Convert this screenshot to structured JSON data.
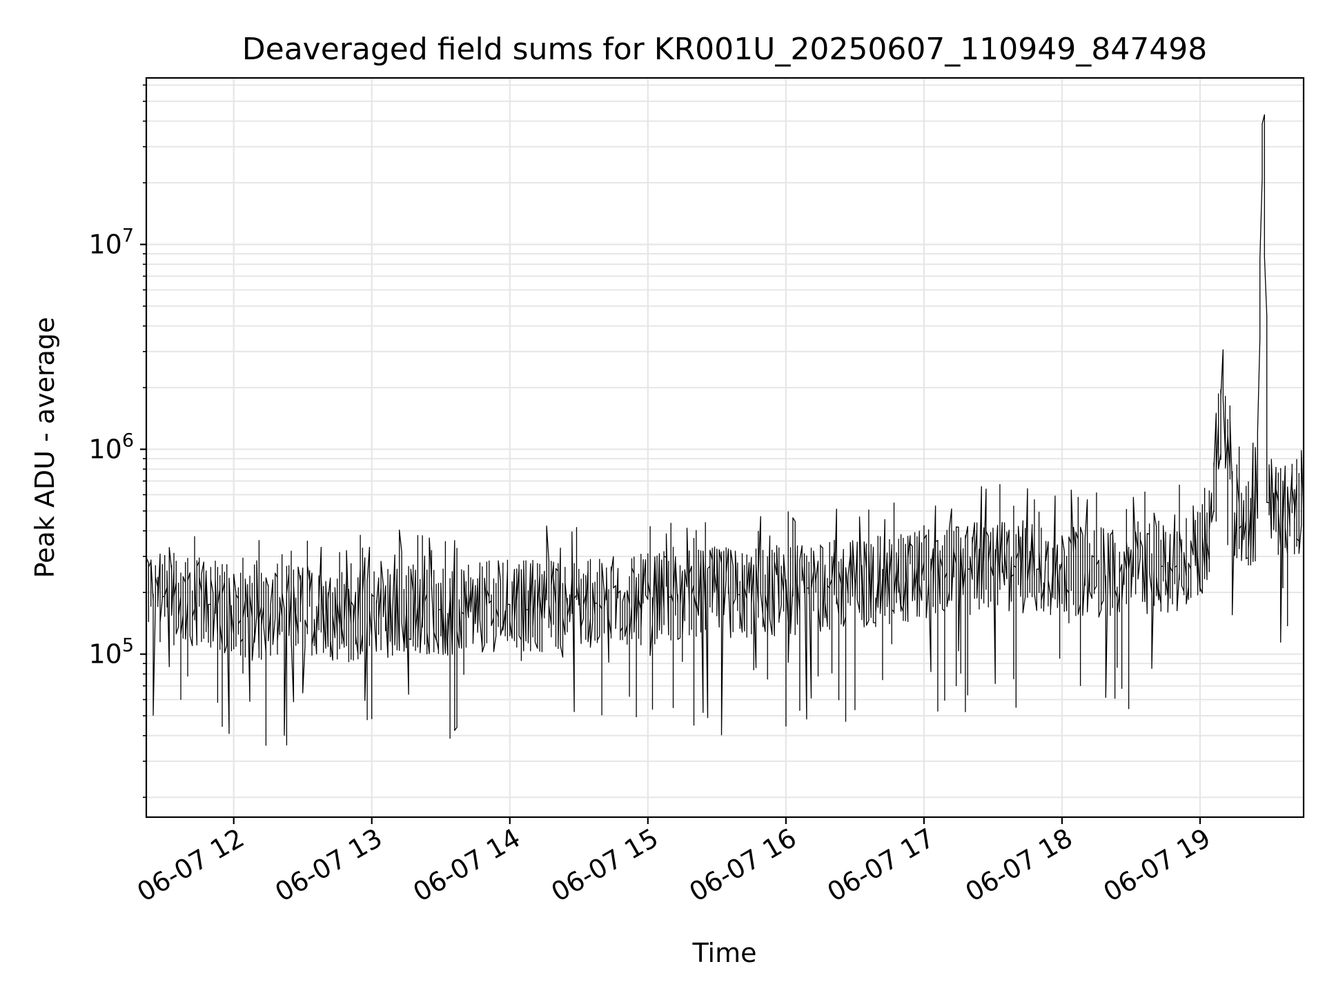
{
  "chart_data": {
    "type": "line",
    "title": "Deaveraged field sums for KR001U_20250607_110949_847498",
    "xlabel": "Time",
    "ylabel": "Peak ADU - average",
    "yscale": "log",
    "grid": true,
    "legend": "none",
    "xlim": [
      "2025-06-07 11:22",
      "2025-06-07 19:45"
    ],
    "ylim": [
      16000,
      65000000
    ],
    "x_ticks": [
      {
        "value": "2025-06-07 12:00",
        "label": "06-07 12"
      },
      {
        "value": "2025-06-07 13:00",
        "label": "06-07 13"
      },
      {
        "value": "2025-06-07 14:00",
        "label": "06-07 14"
      },
      {
        "value": "2025-06-07 15:00",
        "label": "06-07 15"
      },
      {
        "value": "2025-06-07 16:00",
        "label": "06-07 16"
      },
      {
        "value": "2025-06-07 17:00",
        "label": "06-07 17"
      },
      {
        "value": "2025-06-07 18:00",
        "label": "06-07 18"
      },
      {
        "value": "2025-06-07 19:00",
        "label": "06-07 19"
      }
    ],
    "y_ticks": [
      {
        "value": 100000,
        "base": "10",
        "exp": "5"
      },
      {
        "value": 1000000,
        "base": "10",
        "exp": "6"
      },
      {
        "value": 10000000,
        "base": "10",
        "exp": "7"
      }
    ],
    "line_color": "#000000",
    "grid_color": "#e6e6e6",
    "series": [
      {
        "x": [
          "2025-06-07 11:22",
          "2025-06-07 11:30",
          "2025-06-07 11:40",
          "2025-06-07 11:50",
          "2025-06-07 12:00",
          "2025-06-07 12:10",
          "2025-06-07 12:20",
          "2025-06-07 12:30",
          "2025-06-07 12:40",
          "2025-06-07 12:50",
          "2025-06-07 13:00",
          "2025-06-07 13:10",
          "2025-06-07 13:20",
          "2025-06-07 13:30",
          "2025-06-07 13:40",
          "2025-06-07 13:50",
          "2025-06-07 14:00",
          "2025-06-07 14:10",
          "2025-06-07 14:20",
          "2025-06-07 14:30",
          "2025-06-07 14:40",
          "2025-06-07 14:50",
          "2025-06-07 15:00",
          "2025-06-07 15:10",
          "2025-06-07 15:20",
          "2025-06-07 15:30",
          "2025-06-07 15:40",
          "2025-06-07 15:50",
          "2025-06-07 16:00",
          "2025-06-07 16:10",
          "2025-06-07 16:20",
          "2025-06-07 16:30",
          "2025-06-07 16:40",
          "2025-06-07 16:50",
          "2025-06-07 17:00",
          "2025-06-07 17:10",
          "2025-06-07 17:20",
          "2025-06-07 17:30",
          "2025-06-07 17:40",
          "2025-06-07 17:50",
          "2025-06-07 18:00",
          "2025-06-07 18:10",
          "2025-06-07 18:20",
          "2025-06-07 18:30",
          "2025-06-07 18:40",
          "2025-06-07 18:50",
          "2025-06-07 19:00",
          "2025-06-07 19:05",
          "2025-06-07 19:10",
          "2025-06-07 19:15",
          "2025-06-07 19:20",
          "2025-06-07 19:25",
          "2025-06-07 19:28",
          "2025-06-07 19:30",
          "2025-06-07 19:35",
          "2025-06-07 19:40",
          "2025-06-07 19:45"
        ],
        "y": [
          200000,
          190000,
          180000,
          175000,
          160000,
          155000,
          165000,
          170000,
          160000,
          150000,
          165000,
          160000,
          170000,
          165000,
          160000,
          170000,
          175000,
          170000,
          175000,
          180000,
          175000,
          180000,
          185000,
          190000,
          195000,
          200000,
          195000,
          200000,
          205000,
          210000,
          215000,
          220000,
          225000,
          230000,
          240000,
          250000,
          260000,
          270000,
          265000,
          260000,
          255000,
          250000,
          255000,
          260000,
          265000,
          270000,
          300000,
          400000,
          1800000,
          480000,
          450000,
          460000,
          43000000,
          550000,
          500000,
          520000,
          480000
        ]
      }
    ]
  }
}
